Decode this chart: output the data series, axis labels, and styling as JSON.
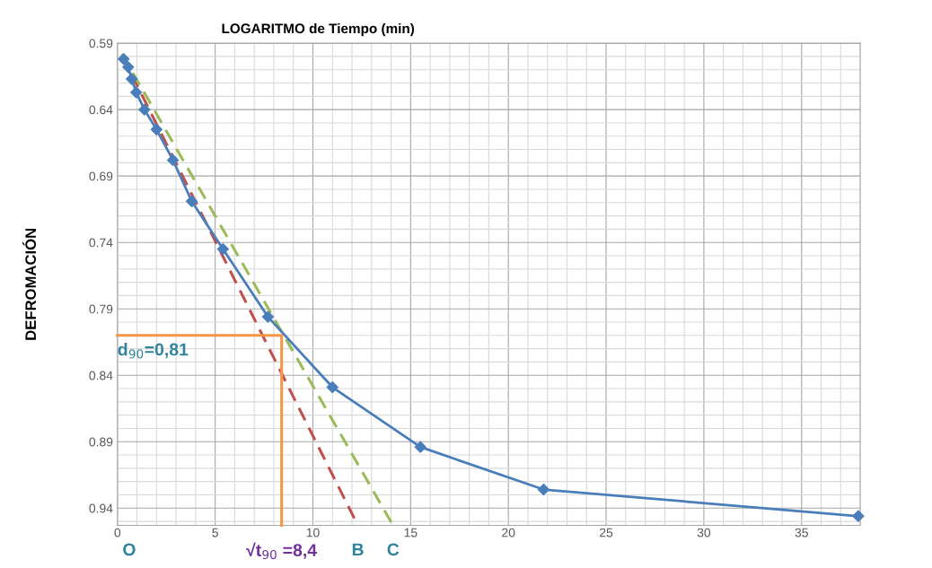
{
  "chart_data": {
    "type": "line",
    "title": "LOGARITMO de Tiempo (min)",
    "ylabel": "DEFROMACIÓN",
    "xlim": [
      0,
      38
    ],
    "xticks": [
      0,
      5,
      10,
      15,
      20,
      25,
      30,
      35
    ],
    "ylim": [
      0.953,
      0.59
    ],
    "yticks": [
      0.59,
      0.64,
      0.69,
      0.74,
      0.79,
      0.84,
      0.89,
      0.94
    ],
    "grid": true,
    "series": [
      {
        "color": "#c0504d",
        "line_style": "dashed",
        "marker": "none",
        "x": [
          0.23,
          12.3
        ],
        "values": [
          0.599,
          0.953
        ]
      },
      {
        "color": "#9bbb59",
        "line_style": "dashed",
        "marker": "none",
        "x": [
          0.23,
          14.1
        ],
        "values": [
          0.598,
          0.953
        ]
      },
      {
        "color": "#f79646",
        "line_style": "solid",
        "marker": "none",
        "x": [
          0,
          8.4,
          8.4
        ],
        "values": [
          0.81,
          0.81,
          0.953
        ]
      },
      {
        "color": "#4a7ebb",
        "line_style": "solid",
        "marker": "diamond",
        "x": [
          0.32,
          0.55,
          0.73,
          0.96,
          1.38,
          2.0,
          2.84,
          3.8,
          5.4,
          7.7,
          11.0,
          15.5,
          21.8,
          37.9
        ],
        "values": [
          0.602,
          0.608,
          0.617,
          0.627,
          0.64,
          0.655,
          0.678,
          0.709,
          0.745,
          0.796,
          0.849,
          0.894,
          0.926,
          0.946
        ]
      }
    ],
    "annotations": [
      "O",
      {
        "text": "d$_{90}$=0,81",
        "x": 0,
        "y": 0.81
      },
      {
        "text": "√t$_{90}$ =8,4",
        "x": 8.4,
        "y": 0.953
      },
      {
        "text": "B",
        "x": 12.3,
        "y": 0.953
      },
      {
        "text": "C",
        "x": 14.1,
        "y": 0.953
      }
    ]
  }
}
